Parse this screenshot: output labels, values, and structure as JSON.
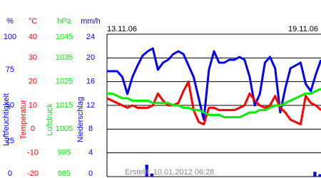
{
  "chart_data": {
    "type": "line",
    "date_start": "13.11.06",
    "date_end": "19.11.06",
    "footer": "Erstellt: 10.01.2012 06:28",
    "x": [
      0,
      4,
      8,
      12,
      16,
      20,
      24,
      28,
      32,
      36,
      40,
      44,
      48,
      52,
      56,
      60,
      64,
      68,
      72,
      76,
      80,
      84,
      88,
      92,
      96,
      100,
      104,
      108,
      112,
      116,
      120,
      124,
      128,
      132,
      136,
      140,
      144,
      148,
      152,
      156,
      160,
      164,
      168
    ],
    "xlim": [
      0,
      168
    ],
    "grid": true,
    "series": [
      {
        "name": "Luftfeuchtigkeit",
        "unit": "%",
        "color": "#0000ff",
        "kind": "line",
        "ylim": [
          0,
          100
        ],
        "yticks": [
          0,
          25,
          50,
          75,
          100
        ],
        "values": [
          74,
          74,
          74,
          70,
          58,
          70,
          78,
          85,
          88,
          90,
          75,
          80,
          82,
          86,
          88,
          86,
          78,
          70,
          55,
          40,
          75,
          88,
          80,
          80,
          82,
          82,
          84,
          82,
          70,
          50,
          58,
          80,
          84,
          76,
          45,
          62,
          76,
          78,
          80,
          65,
          60,
          72,
          82
        ]
      },
      {
        "name": "Temperatur",
        "unit": "°C",
        "color": "#ff0000",
        "kind": "line",
        "ylim": [
          -20,
          40
        ],
        "yticks": [
          -20,
          -10,
          0,
          10,
          20,
          30,
          40
        ],
        "values": [
          13,
          12,
          11,
          10,
          9,
          10,
          9,
          9,
          9,
          10,
          15,
          12,
          10,
          10,
          11,
          16,
          20,
          8,
          3,
          2,
          9,
          9,
          8,
          8,
          8,
          8,
          9,
          10,
          15,
          12,
          10,
          9,
          10,
          14,
          9,
          7,
          4,
          3,
          2,
          14,
          11,
          10,
          8
        ]
      },
      {
        "name": "Luftdruck",
        "unit": "hPa",
        "color": "#00ee00",
        "kind": "line",
        "ylim": [
          985,
          1045
        ],
        "yticks": [
          985,
          995,
          1005,
          1015,
          1025,
          1035,
          1045
        ],
        "values": [
          1020,
          1020,
          1019,
          1018,
          1018,
          1017,
          1017,
          1017,
          1017,
          1016,
          1016,
          1016,
          1016,
          1015,
          1015,
          1014,
          1014,
          1013,
          1013,
          1012,
          1011,
          1011,
          1011,
          1010,
          1010,
          1010,
          1010,
          1011,
          1012,
          1012,
          1013,
          1013,
          1014,
          1015,
          1015,
          1016,
          1017,
          1018,
          1019,
          1020,
          1020,
          1021,
          1022
        ]
      },
      {
        "name": "Niederschlag",
        "unit": "mm/h",
        "color": "#0000ff",
        "kind": "bar",
        "ylim": [
          0,
          24
        ],
        "yticks": [
          0,
          4,
          8,
          12,
          16,
          20,
          24
        ],
        "values": [
          0,
          0,
          0,
          0,
          0,
          0,
          0,
          0,
          2,
          0.5,
          0,
          0,
          0,
          0,
          0,
          0,
          0,
          0,
          0,
          0,
          0,
          0,
          0,
          0,
          0,
          0,
          0,
          0,
          0,
          0,
          0,
          0,
          0,
          0,
          0,
          0,
          0,
          0,
          0,
          0,
          0,
          0.8,
          0.4
        ]
      }
    ]
  }
}
